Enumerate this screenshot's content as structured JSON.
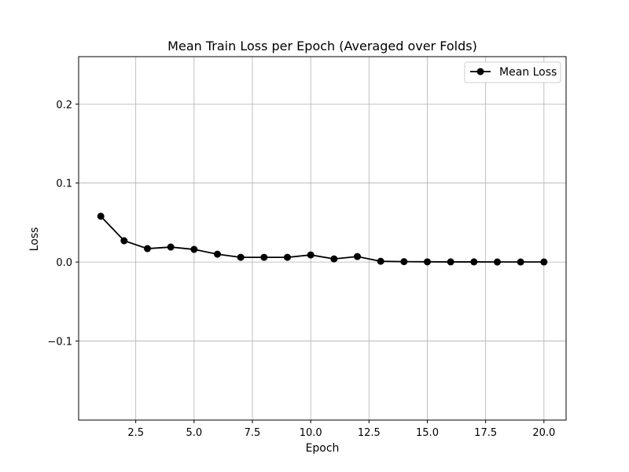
{
  "chart_data": {
    "type": "line",
    "title": "Mean Train Loss per Epoch (Averaged over Folds)",
    "xlabel": "Epoch",
    "ylabel": "Loss",
    "xlim": [
      0.05,
      20.95
    ],
    "ylim": [
      -0.2,
      0.26
    ],
    "x_ticks": [
      2.5,
      5.0,
      7.5,
      10.0,
      12.5,
      15.0,
      17.5,
      20.0
    ],
    "x_tick_labels": [
      "2.5",
      "5.0",
      "7.5",
      "10.0",
      "12.5",
      "15.0",
      "17.5",
      "20.0"
    ],
    "y_ticks": [
      -0.1,
      0.0,
      0.1,
      0.2
    ],
    "y_tick_labels": [
      "−0.1",
      "0.0",
      "0.1",
      "0.2"
    ],
    "grid": true,
    "legend_position": "top-right",
    "series": [
      {
        "name": "Mean Loss",
        "color": "#000000",
        "marker": "circle",
        "x": [
          1,
          2,
          3,
          4,
          5,
          6,
          7,
          8,
          9,
          10,
          11,
          12,
          13,
          14,
          15,
          16,
          17,
          18,
          19,
          20
        ],
        "y": [
          0.058,
          0.027,
          0.017,
          0.019,
          0.016,
          0.01,
          0.006,
          0.006,
          0.006,
          0.009,
          0.004,
          0.007,
          0.001,
          0.0005,
          0.0003,
          0.0002,
          0.0002,
          0.0001,
          0.0001,
          0.0001
        ]
      }
    ]
  }
}
